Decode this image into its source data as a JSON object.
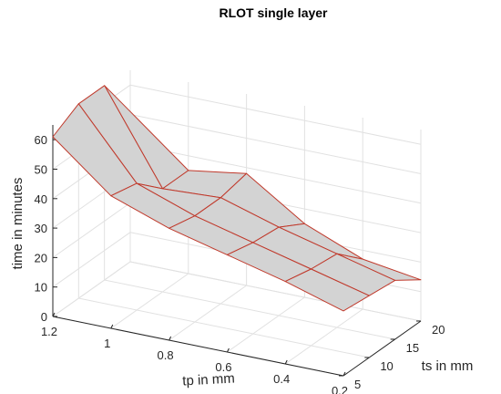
{
  "chart_data": {
    "type": "surface",
    "title": "RLOT single layer",
    "xlabel": "tp in mm",
    "ylabel": "ts in mm",
    "zlabel": "time in minutes",
    "xlim": [
      0.2,
      1.2
    ],
    "ylim": [
      5,
      20
    ],
    "zlim": [
      0,
      65
    ],
    "x_ticks": [
      "1.2",
      "1",
      "0.8",
      "0.6",
      "0.4",
      "0.2"
    ],
    "y_ticks": [
      "5",
      "10",
      "15",
      "20"
    ],
    "z_ticks": [
      "0",
      "10",
      "20",
      "30",
      "40",
      "50",
      "60"
    ],
    "grid": true,
    "tp": [
      1.2,
      1.0,
      0.8,
      0.6,
      0.4,
      0.2
    ],
    "ts": [
      5,
      10,
      15,
      20
    ],
    "time": [
      [
        61,
        45,
        38,
        33,
        28,
        22
      ],
      [
        66,
        43,
        36,
        31,
        26,
        21
      ],
      [
        66,
        35,
        36,
        30,
        25,
        20
      ],
      [
        51,
        35,
        38,
        25,
        17,
        14
      ]
    ],
    "colors": {
      "face": "#d3d3d3",
      "edge": "#c0392b",
      "grid": "#e1e1e1",
      "axis": "#262626"
    }
  }
}
